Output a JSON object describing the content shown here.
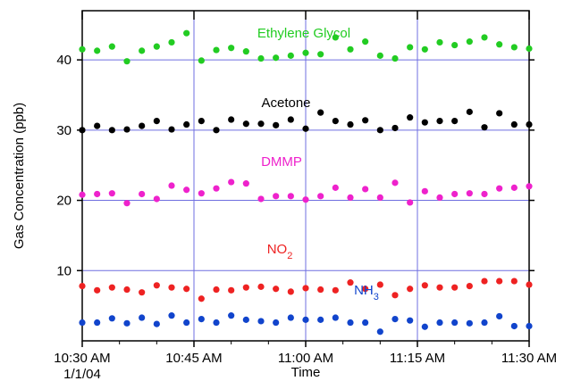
{
  "chart_data": {
    "type": "scatter",
    "xlabel": "Time",
    "ylabel": "Gas Concentration (ppb)",
    "x_ticks": [
      {
        "value": 0,
        "label": "10:30 AM",
        "sublabel": "1/1/04"
      },
      {
        "value": 15,
        "label": "10:45 AM"
      },
      {
        "value": 30,
        "label": "11:00 AM"
      },
      {
        "value": 45,
        "label": "11:15 AM"
      },
      {
        "value": 60,
        "label": "11:30 AM"
      }
    ],
    "x_unit": "minutes after 10:30 AM on 1/1/04",
    "xlim": [
      0,
      60
    ],
    "ylim": [
      0,
      47
    ],
    "y_ticks": [
      10,
      20,
      30,
      40
    ],
    "grid": true,
    "grid_color": "#6f6fe0",
    "series": [
      {
        "name": "Ethylene Glycol",
        "label": "Ethylene Glycol",
        "color": "#22cc22",
        "x": [
          0,
          2,
          4,
          6,
          8,
          10,
          12,
          14,
          16,
          18,
          20,
          22,
          24,
          26,
          28,
          30,
          32,
          34,
          36,
          38,
          40,
          42,
          44,
          46,
          48,
          50,
          52,
          54,
          56,
          58,
          60
        ],
        "y": [
          41.5,
          41.3,
          41.9,
          39.8,
          41.3,
          41.9,
          42.5,
          43.8,
          39.9,
          41.4,
          41.7,
          41.2,
          40.2,
          40.3,
          40.6,
          41.0,
          40.8,
          43.2,
          41.5,
          42.6,
          40.6,
          40.2,
          41.8,
          41.5,
          42.5,
          42.1,
          42.6,
          43.2,
          42.2,
          41.8,
          41.6
        ]
      },
      {
        "name": "Acetone",
        "label": "Acetone",
        "color": "#000000",
        "x": [
          0,
          2,
          4,
          6,
          8,
          10,
          12,
          14,
          16,
          18,
          20,
          22,
          24,
          26,
          28,
          30,
          32,
          34,
          36,
          38,
          40,
          42,
          44,
          46,
          48,
          50,
          52,
          54,
          56,
          58,
          60
        ],
        "y": [
          30.0,
          30.6,
          30.0,
          30.1,
          30.6,
          31.3,
          30.1,
          30.8,
          31.3,
          30.0,
          31.5,
          30.9,
          30.9,
          30.7,
          31.5,
          30.2,
          32.5,
          31.3,
          30.8,
          31.4,
          30.0,
          30.3,
          31.8,
          31.1,
          31.3,
          31.3,
          32.6,
          30.4,
          32.4,
          30.8,
          30.8
        ]
      },
      {
        "name": "DMMP",
        "label": "DMMP",
        "color": "#ee22cc",
        "x": [
          0,
          2,
          4,
          6,
          8,
          10,
          12,
          14,
          16,
          18,
          20,
          22,
          24,
          26,
          28,
          30,
          32,
          34,
          36,
          38,
          40,
          42,
          44,
          46,
          48,
          50,
          52,
          54,
          56,
          58,
          60
        ],
        "y": [
          20.8,
          20.9,
          21.0,
          19.6,
          20.9,
          20.2,
          22.1,
          21.5,
          21.0,
          21.7,
          22.6,
          22.4,
          20.2,
          20.6,
          20.6,
          20.1,
          20.6,
          21.8,
          20.4,
          21.6,
          20.4,
          22.5,
          19.7,
          21.3,
          20.4,
          20.9,
          21.0,
          20.9,
          21.7,
          21.8,
          22.0
        ]
      },
      {
        "name": "NO₂",
        "label": "NO",
        "label_sub": "2",
        "color": "#ee2222",
        "x": [
          0,
          2,
          4,
          6,
          8,
          10,
          12,
          14,
          16,
          18,
          20,
          22,
          24,
          26,
          28,
          30,
          32,
          34,
          36,
          38,
          40,
          42,
          44,
          46,
          48,
          50,
          52,
          54,
          56,
          58,
          60
        ],
        "y": [
          7.8,
          7.2,
          7.6,
          7.3,
          6.9,
          7.9,
          7.6,
          7.4,
          6.0,
          7.3,
          7.2,
          7.6,
          7.7,
          7.4,
          7.0,
          7.5,
          7.3,
          7.2,
          8.3,
          7.4,
          8.0,
          6.5,
          7.4,
          7.9,
          7.6,
          7.6,
          7.8,
          8.5,
          8.5,
          8.5,
          8.0
        ]
      },
      {
        "name": "NH₃",
        "label": "NH",
        "label_sub": "3",
        "color": "#1144cc",
        "x": [
          0,
          2,
          4,
          6,
          8,
          10,
          12,
          14,
          16,
          18,
          20,
          22,
          24,
          26,
          28,
          30,
          32,
          34,
          36,
          38,
          40,
          42,
          44,
          46,
          48,
          50,
          52,
          54,
          56,
          58,
          60
        ],
        "y": [
          2.6,
          2.6,
          3.2,
          2.5,
          3.3,
          2.4,
          3.6,
          2.6,
          3.1,
          2.6,
          3.6,
          3.0,
          2.8,
          2.6,
          3.3,
          3.0,
          3.0,
          3.3,
          2.6,
          2.6,
          1.3,
          3.1,
          2.9,
          2.0,
          2.6,
          2.6,
          2.5,
          2.6,
          3.5,
          2.1,
          2.1
        ]
      }
    ]
  }
}
